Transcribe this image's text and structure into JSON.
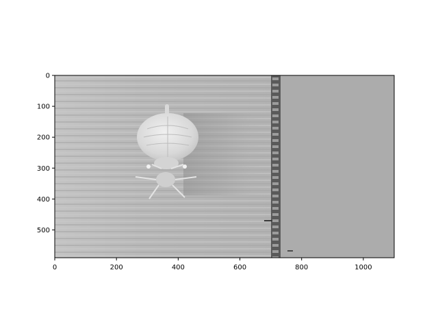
{
  "chart_data": {
    "type": "image",
    "title": "",
    "xlabel": "",
    "ylabel": "",
    "xlim": [
      0,
      1100
    ],
    "ylim": [
      590,
      0
    ],
    "x_ticks": [
      0,
      200,
      400,
      600,
      800,
      1000
    ],
    "y_ticks": [
      0,
      100,
      200,
      300,
      400,
      500
    ],
    "grid": false,
    "colormap": "gray",
    "content": "grayscale micrograph of a mite specimen on a striped background with a vertical seam band",
    "regions": {
      "specimen_center": [
        370,
        230
      ],
      "seam_x_range": [
        700,
        735
      ],
      "uniform_gray_x_from": 735
    },
    "colors": {
      "left_background": "#b6b6b6",
      "right_flat": "#acacac",
      "seam_dark": "#4a4a4a",
      "specimen_light": "#e6e6e6"
    }
  }
}
